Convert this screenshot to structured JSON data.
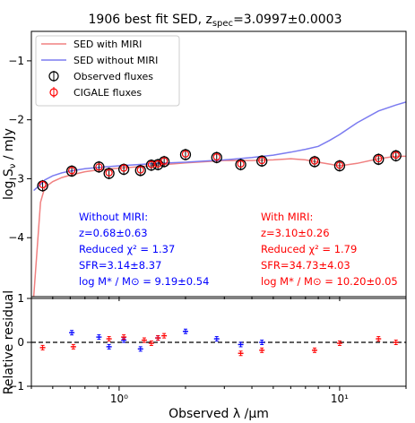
{
  "title_main": "1906 best fit SED, z",
  "title_sub": "spec",
  "title_value": "=3.0997±0.0003",
  "chart_data": [
    {
      "type": "line",
      "panel": "SED",
      "xscale": "log",
      "xlim": [
        0.4,
        20
      ],
      "ylim": [
        -5,
        -0.5
      ],
      "yticks": [
        -4,
        -3,
        -2,
        -1
      ],
      "ylabel": "log S",
      "ylabel_sub": "ν",
      "ylabel_unit": " / mJy",
      "legend": {
        "placement": "top-left",
        "entries": [
          "SED with MIRI",
          "SED without MIRI",
          "Observed fluxes",
          "CIGALE fluxes"
        ]
      },
      "series": [
        {
          "name": "SED with MIRI",
          "color": "#f08080",
          "x": [
            0.41,
            0.44,
            0.46,
            0.5,
            0.55,
            0.6,
            0.7,
            0.8,
            1.0,
            1.2,
            1.5,
            2.0,
            3.0,
            4.0,
            5.0,
            6.0,
            7.0,
            8.0,
            10.0,
            12.0,
            15.0,
            18.0,
            20.0
          ],
          "y": [
            -5.0,
            -3.4,
            -3.15,
            -3.05,
            -2.98,
            -2.94,
            -2.88,
            -2.85,
            -2.82,
            -2.8,
            -2.77,
            -2.73,
            -2.69,
            -2.69,
            -2.68,
            -2.66,
            -2.68,
            -2.72,
            -2.78,
            -2.74,
            -2.66,
            -2.62,
            -2.62
          ]
        },
        {
          "name": "SED without MIRI",
          "color": "#7b7bf0",
          "x": [
            0.41,
            0.44,
            0.46,
            0.5,
            0.55,
            0.6,
            0.7,
            0.8,
            1.0,
            1.2,
            1.5,
            2.0,
            3.0,
            4.0,
            5.0,
            6.0,
            7.0,
            8.0,
            9.0,
            10.0,
            12.0,
            15.0,
            18.0,
            20.0
          ],
          "y": [
            -3.2,
            -3.1,
            -3.02,
            -2.95,
            -2.9,
            -2.87,
            -2.83,
            -2.81,
            -2.78,
            -2.76,
            -2.74,
            -2.72,
            -2.68,
            -2.64,
            -2.6,
            -2.55,
            -2.5,
            -2.45,
            -2.35,
            -2.25,
            -2.05,
            -1.85,
            -1.75,
            -1.7
          ]
        }
      ],
      "observed": {
        "name": "Observed fluxes",
        "x": [
          0.45,
          0.61,
          0.81,
          0.9,
          1.05,
          1.25,
          1.4,
          1.5,
          1.6,
          2.0,
          2.77,
          3.56,
          4.44,
          7.7,
          10.0,
          15.0,
          18.0
        ],
        "y": [
          -3.12,
          -2.87,
          -2.8,
          -2.91,
          -2.84,
          -2.86,
          -2.77,
          -2.76,
          -2.71,
          -2.59,
          -2.64,
          -2.76,
          -2.7,
          -2.71,
          -2.78,
          -2.67,
          -2.61
        ]
      },
      "cigale": {
        "name": "CIGALE fluxes",
        "x": [
          0.45,
          0.61,
          0.81,
          0.9,
          1.05,
          1.25,
          1.4,
          1.5,
          1.6,
          2.0,
          2.77,
          3.56,
          4.44,
          7.7,
          10.0,
          15.0,
          18.0
        ],
        "y": [
          -3.1,
          -2.86,
          -2.8,
          -2.9,
          -2.82,
          -2.85,
          -2.76,
          -2.75,
          -2.7,
          -2.58,
          -2.63,
          -2.75,
          -2.69,
          -2.7,
          -2.77,
          -2.66,
          -2.6
        ]
      },
      "annotations": {
        "without": {
          "color": "#0000ff",
          "lines": [
            "Without MIRI:",
            "z=0.68±0.63",
            "Reduced χ² = 1.37",
            "SFR=3.14±8.37",
            "log M* / M⊙ = 9.19±0.54"
          ]
        },
        "with": {
          "color": "#ff0000",
          "lines": [
            "With MIRI:",
            "z=3.10±0.26",
            "Reduced χ² = 1.79",
            "SFR=34.73±4.03",
            "log M* / M⊙ = 10.20±0.05"
          ]
        }
      }
    },
    {
      "type": "scatter",
      "panel": "residual",
      "xscale": "log",
      "xlim": [
        0.4,
        20
      ],
      "ylim": [
        -1,
        1
      ],
      "yticks": [
        -1,
        0,
        1
      ],
      "ylabel": "Relative residual",
      "xlabel": "Observed λ /μm",
      "xticks": [
        {
          "v": 1,
          "label": "10⁰"
        },
        {
          "v": 10,
          "label": "10¹"
        }
      ],
      "zero_line": true,
      "series": [
        {
          "name": "without MIRI",
          "color": "#0000ff",
          "x": [
            0.61,
            0.81,
            0.9,
            1.05,
            1.25,
            1.5,
            2.0,
            2.77,
            3.56,
            4.44
          ],
          "y": [
            0.22,
            0.12,
            -0.1,
            0.05,
            -0.15,
            0.1,
            0.25,
            0.08,
            -0.05,
            0.0
          ]
        },
        {
          "name": "with MIRI",
          "color": "#ff0000",
          "x": [
            0.45,
            0.62,
            0.9,
            1.05,
            1.3,
            1.4,
            1.5,
            1.6,
            3.56,
            4.44,
            7.7,
            10.0,
            15.0,
            18.0
          ],
          "y": [
            -0.12,
            -0.1,
            0.08,
            0.12,
            0.05,
            -0.02,
            0.1,
            0.15,
            -0.25,
            -0.18,
            -0.18,
            -0.02,
            0.08,
            0.0
          ]
        }
      ]
    }
  ]
}
